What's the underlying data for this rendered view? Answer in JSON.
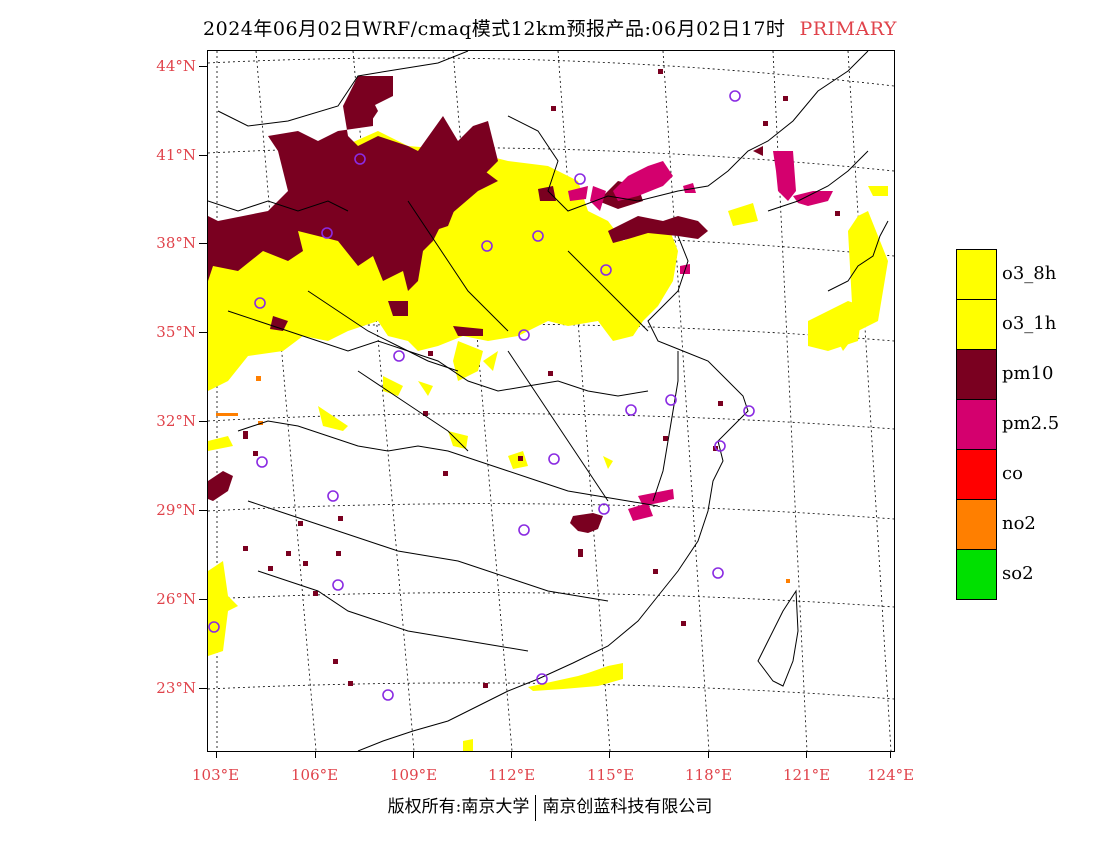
{
  "title": {
    "main": "2024年06月02日WRF/cmaq模式12km预报产品:06月02日17时",
    "tag": "PRIMARY"
  },
  "axes": {
    "lat_labels": [
      "44°N",
      "41°N",
      "38°N",
      "35°N",
      "32°N",
      "29°N",
      "26°N",
      "23°N"
    ],
    "lon_labels": [
      "103°E",
      "106°E",
      "109°E",
      "112°E",
      "115°E",
      "118°E",
      "121°E",
      "124°E"
    ]
  },
  "legend": [
    {
      "label": "o3_8h",
      "color": "#ffff00"
    },
    {
      "label": "o3_1h",
      "color": "#ffff00"
    },
    {
      "label": "pm10",
      "color": "#7a0020"
    },
    {
      "label": "pm2.5",
      "color": "#d4006e"
    },
    {
      "label": "co",
      "color": "#ff0000"
    },
    {
      "label": "no2",
      "color": "#ff7f00"
    },
    {
      "label": "so2",
      "color": "#00e000"
    }
  ],
  "colors": {
    "o3": "#ffff00",
    "pm10": "#7a0020",
    "pm25": "#d4006e",
    "no2": "#ff7f00",
    "station": "#8a2be2",
    "axis_label": "#e0434b"
  },
  "credit": {
    "left": "版权所有:南京大学",
    "right": "南京创蓝科技有限公司"
  }
}
